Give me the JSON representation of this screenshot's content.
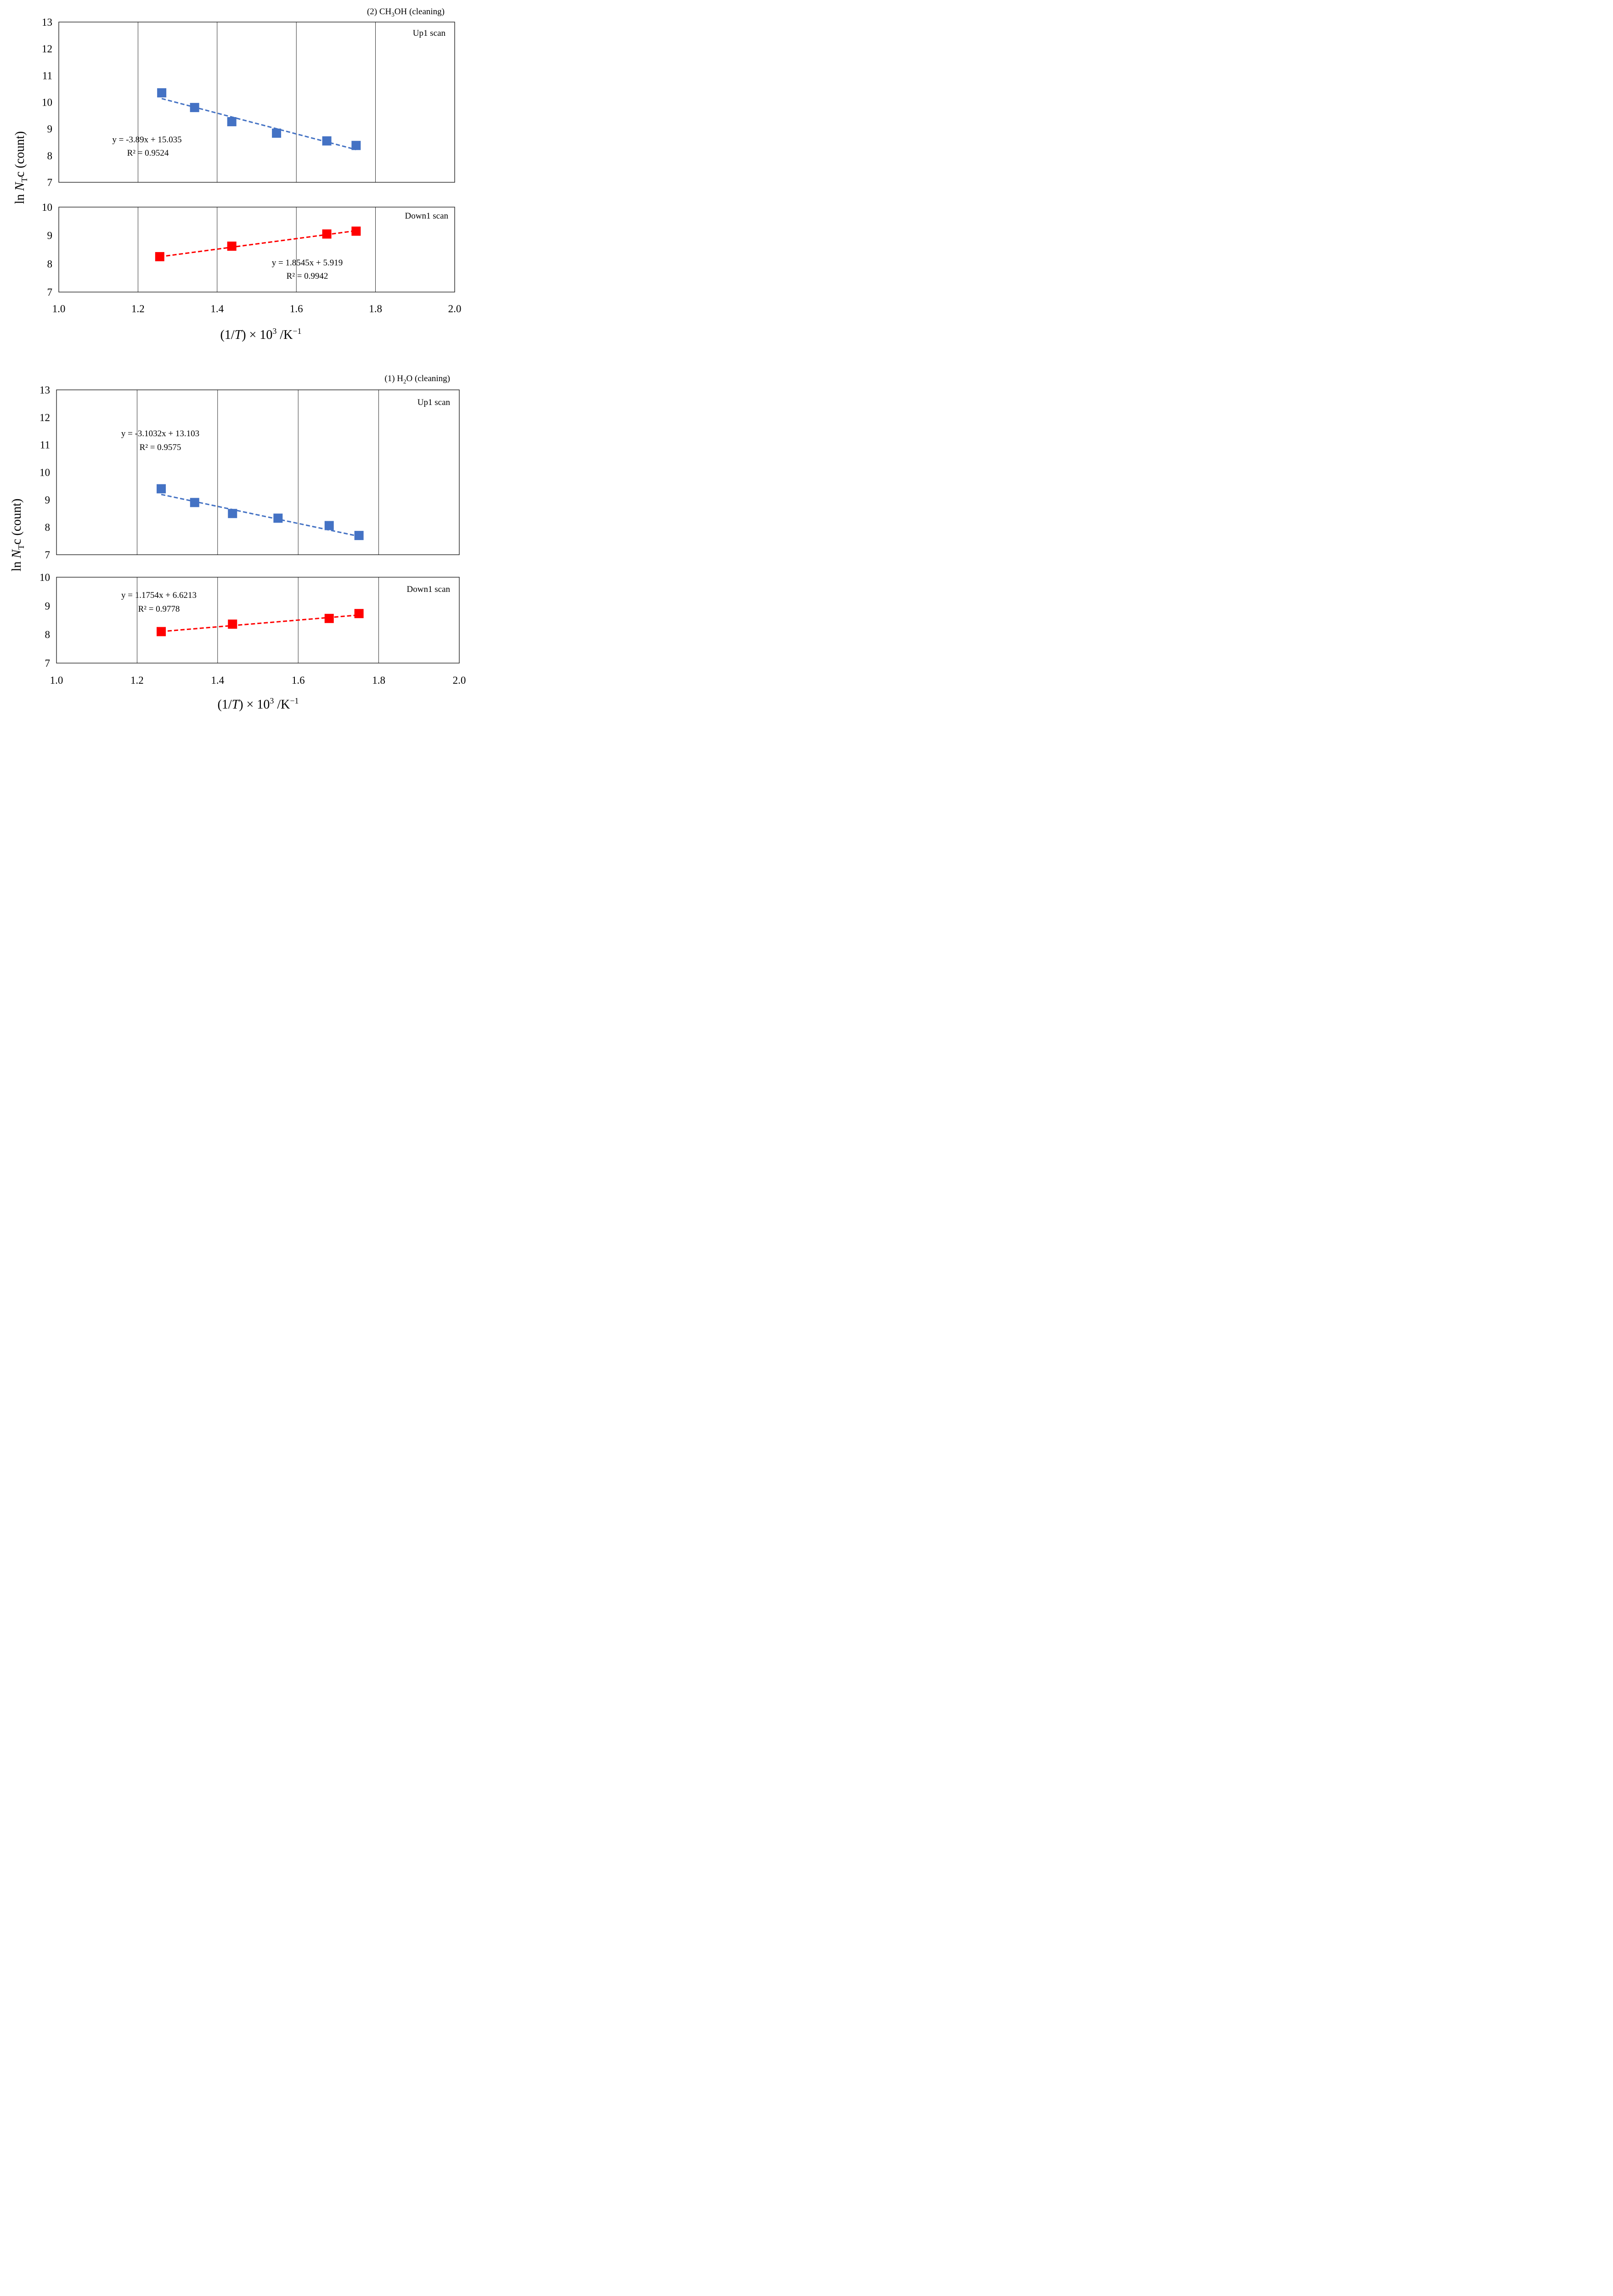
{
  "chart_data": [
    {
      "type": "scatter",
      "title": "(2) CH3OH (cleaning)",
      "title_parts": {
        "pre": "(2) CH",
        "sub": "3",
        "post": "OH (cleaning)"
      },
      "xlabel": "(1/T) × 10³ /K⁻¹",
      "xlabel_parts": {
        "open": "(1/",
        "italic": "T",
        "close": ")",
        "times": " × 10",
        "sup_exp": "3",
        "slash_unit": " /K",
        "sup_unit": "−1"
      },
      "ylabel": "ln NTc (count)",
      "ylabel_parts": {
        "pre": "ln ",
        "italic": "N",
        "sub": "T",
        "post": "c (count)"
      },
      "xlim": [
        1.0,
        2.0
      ],
      "x_ticks": [
        "1.0",
        "1.2",
        "1.4",
        "1.6",
        "1.8",
        "2.0"
      ],
      "grid": "vertical",
      "legend": "none",
      "panels": [
        {
          "label": "Up1 scan",
          "ylim": [
            7,
            13
          ],
          "y_ticks": [
            "7",
            "8",
            "9",
            "10",
            "11",
            "12",
            "13"
          ],
          "series": [
            {
              "color": "#4472C4",
              "marker": "square",
              "x": [
                1.26,
                1.343,
                1.437,
                1.55,
                1.677,
                1.751
              ],
              "y": [
                10.35,
                9.8,
                9.27,
                8.84,
                8.55,
                8.38
              ]
            }
          ],
          "trendline": {
            "slope": -3.89,
            "intercept": 15.035,
            "x_range": [
              1.26,
              1.751
            ],
            "color": "#4472C4",
            "style": "dashed"
          },
          "equation": "y = -3.89x + 15.035",
          "r2": "R² = 0.9524"
        },
        {
          "label": "Down1 scan",
          "ylim": [
            7,
            10
          ],
          "y_ticks": [
            "7",
            "8",
            "9",
            "10"
          ],
          "series": [
            {
              "color": "#FF0000",
              "marker": "square",
              "x": [
                1.255,
                1.437,
                1.677,
                1.751
              ],
              "y": [
                8.25,
                8.62,
                9.05,
                9.15
              ]
            }
          ],
          "trendline": {
            "slope": 1.8545,
            "intercept": 5.919,
            "x_range": [
              1.255,
              1.751
            ],
            "color": "#FF0000",
            "style": "dashed"
          },
          "equation": "y = 1.8545x + 5.919",
          "r2": "R² = 0.9942"
        }
      ]
    },
    {
      "type": "scatter",
      "title": "(1) H2O (cleaning)",
      "title_parts": {
        "pre": "(1) H",
        "sub": "2",
        "post": "O (cleaning)"
      },
      "xlabel": "(1/T) × 10³ /K⁻¹",
      "xlabel_parts": {
        "open": "(1/",
        "italic": "T",
        "close": ")",
        "times": " × 10",
        "sup_exp": "3",
        "slash_unit": " /K",
        "sup_unit": "−1"
      },
      "ylabel": "ln NTc (count)",
      "ylabel_parts": {
        "pre": "ln ",
        "italic": "N",
        "sub": "T",
        "post": "c (count)"
      },
      "xlim": [
        1.0,
        2.0
      ],
      "x_ticks": [
        "1.0",
        "1.2",
        "1.4",
        "1.6",
        "1.8",
        "2.0"
      ],
      "grid": "vertical",
      "legend": "none",
      "panels": [
        {
          "label": "Up1 scan",
          "ylim": [
            7,
            13
          ],
          "y_ticks": [
            "7",
            "8",
            "9",
            "10",
            "11",
            "12",
            "13"
          ],
          "series": [
            {
              "color": "#4472C4",
              "marker": "square",
              "x": [
                1.26,
                1.343,
                1.437,
                1.55,
                1.677,
                1.751
              ],
              "y": [
                9.4,
                8.9,
                8.5,
                8.33,
                8.06,
                7.7
              ]
            }
          ],
          "trendline": {
            "slope": -3.1032,
            "intercept": 13.103,
            "x_range": [
              1.26,
              1.751
            ],
            "color": "#4472C4",
            "style": "dashed"
          },
          "equation": "y = -3.1032x + 13.103",
          "r2": "R² = 0.9575"
        },
        {
          "label": "Down1 scan",
          "ylim": [
            7,
            10
          ],
          "y_ticks": [
            "7",
            "8",
            "9",
            "10"
          ],
          "series": [
            {
              "color": "#FF0000",
              "marker": "square",
              "x": [
                1.26,
                1.437,
                1.677,
                1.751
              ],
              "y": [
                8.1,
                8.36,
                8.56,
                8.73
              ]
            }
          ],
          "trendline": {
            "slope": 1.1754,
            "intercept": 6.6213,
            "x_range": [
              1.26,
              1.751
            ],
            "color": "#FF0000",
            "style": "dashed"
          },
          "equation": "y = 1.1754x + 6.6213",
          "r2": "R² = 0.9778"
        }
      ]
    }
  ]
}
